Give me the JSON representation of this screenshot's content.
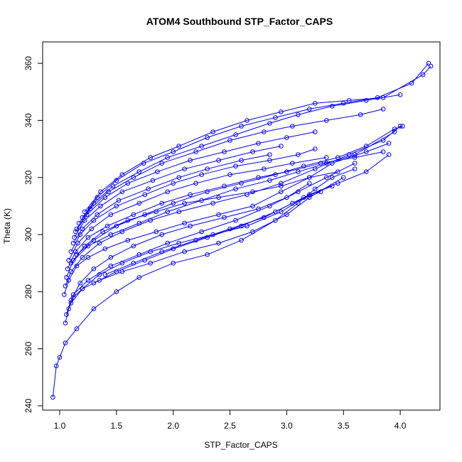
{
  "chart_data": {
    "type": "line",
    "title": "ATOM4 Southbound STP_Factor_CAPS",
    "xlabel": "STP_Factor_CAPS",
    "ylabel": "Theta (K)",
    "xlim": [
      0.85,
      4.35
    ],
    "ylim": [
      238.5,
      367.5
    ],
    "x_ticks": [
      1.0,
      1.5,
      2.0,
      2.5,
      3.0,
      3.5,
      4.0
    ],
    "x_tick_labels": [
      "1.0",
      "1.5",
      "2.0",
      "2.5",
      "3.0",
      "3.5",
      "4.0"
    ],
    "y_ticks": [
      240,
      260,
      280,
      300,
      320,
      340,
      360
    ],
    "y_tick_labels": [
      "240",
      "260",
      "280",
      "300",
      "320",
      "340",
      "360"
    ],
    "grid": false,
    "marker": "open-circle",
    "color": "#0000ff",
    "series": [
      {
        "points": [
          [
            0.94,
            243
          ],
          [
            0.97,
            254
          ],
          [
            1.0,
            257
          ],
          [
            1.05,
            262
          ],
          [
            1.15,
            267
          ],
          [
            1.3,
            274
          ],
          [
            1.5,
            280
          ],
          [
            1.7,
            285
          ],
          [
            2.0,
            290
          ],
          [
            2.3,
            293
          ],
          [
            2.6,
            298
          ],
          [
            2.9,
            305
          ],
          [
            3.1,
            311
          ],
          [
            3.25,
            316
          ],
          [
            3.4,
            320
          ],
          [
            3.6,
            323
          ]
        ]
      },
      {
        "points": [
          [
            1.05,
            269
          ],
          [
            1.08,
            274
          ],
          [
            1.12,
            278
          ],
          [
            1.2,
            281
          ],
          [
            1.35,
            284
          ],
          [
            1.55,
            287
          ],
          [
            1.8,
            290
          ],
          [
            2.1,
            294
          ],
          [
            2.4,
            297
          ],
          [
            2.7,
            301
          ],
          [
            3.0,
            307
          ],
          [
            3.2,
            313
          ],
          [
            3.5,
            320
          ]
        ]
      },
      {
        "points": [
          [
            1.04,
            279
          ],
          [
            1.08,
            284
          ],
          [
            1.15,
            289
          ],
          [
            1.25,
            292
          ],
          [
            1.4,
            295
          ],
          [
            1.6,
            298
          ],
          [
            1.85,
            301
          ],
          [
            2.1,
            304
          ],
          [
            2.4,
            307
          ],
          [
            2.7,
            310
          ],
          [
            2.95,
            315
          ],
          [
            3.2,
            320
          ],
          [
            3.4,
            325
          ],
          [
            3.7,
            329
          ],
          [
            3.9,
            332
          ]
        ]
      },
      {
        "points": [
          [
            1.05,
            282
          ],
          [
            1.1,
            287
          ],
          [
            1.2,
            292
          ],
          [
            1.35,
            297
          ],
          [
            1.55,
            301
          ],
          [
            1.8,
            305
          ],
          [
            2.05,
            308
          ],
          [
            2.35,
            311
          ],
          [
            2.65,
            314
          ],
          [
            2.95,
            318
          ],
          [
            3.25,
            323
          ],
          [
            3.55,
            328
          ],
          [
            3.85,
            333
          ],
          [
            4.0,
            338
          ]
        ]
      },
      {
        "points": [
          [
            1.06,
            285
          ],
          [
            1.12,
            291
          ],
          [
            1.22,
            296
          ],
          [
            1.38,
            301
          ],
          [
            1.6,
            305
          ],
          [
            1.85,
            308
          ],
          [
            2.1,
            311
          ],
          [
            2.4,
            313
          ],
          [
            2.7,
            315
          ],
          [
            2.95,
            317
          ],
          [
            3.2,
            320
          ],
          [
            3.45,
            322
          ]
        ]
      },
      {
        "points": [
          [
            1.07,
            288
          ],
          [
            1.14,
            294
          ],
          [
            1.25,
            299
          ],
          [
            1.42,
            303
          ],
          [
            1.65,
            307
          ],
          [
            1.9,
            311
          ],
          [
            2.15,
            314
          ],
          [
            2.45,
            317
          ],
          [
            2.75,
            320
          ],
          [
            3.0,
            322
          ],
          [
            3.3,
            325
          ],
          [
            3.6,
            327
          ],
          [
            3.85,
            329
          ]
        ]
      },
      {
        "points": [
          [
            1.08,
            291
          ],
          [
            1.16,
            297
          ],
          [
            1.28,
            302
          ],
          [
            1.45,
            307
          ],
          [
            1.7,
            311
          ],
          [
            1.95,
            315
          ],
          [
            2.2,
            318
          ],
          [
            2.5,
            321
          ],
          [
            2.8,
            323
          ],
          [
            3.05,
            325
          ],
          [
            3.35,
            327
          ]
        ]
      },
      {
        "points": [
          [
            1.1,
            294
          ],
          [
            1.18,
            300
          ],
          [
            1.3,
            305
          ],
          [
            1.5,
            310
          ],
          [
            1.75,
            314
          ],
          [
            2.0,
            318
          ],
          [
            2.25,
            321
          ],
          [
            2.55,
            324
          ],
          [
            2.85,
            326
          ],
          [
            3.1,
            328
          ],
          [
            3.25,
            330
          ]
        ]
      },
      {
        "points": [
          [
            1.12,
            297
          ],
          [
            1.2,
            302
          ],
          [
            1.33,
            307
          ],
          [
            1.52,
            312
          ],
          [
            1.78,
            316
          ],
          [
            2.05,
            320
          ],
          [
            2.3,
            323
          ],
          [
            2.6,
            326
          ],
          [
            2.85,
            328
          ]
        ]
      },
      {
        "points": [
          [
            1.13,
            299
          ],
          [
            1.22,
            305
          ],
          [
            1.36,
            310
          ],
          [
            1.55,
            315
          ],
          [
            1.82,
            319
          ],
          [
            2.1,
            323
          ],
          [
            2.4,
            326
          ],
          [
            2.7,
            329
          ],
          [
            2.95,
            331
          ]
        ]
      },
      {
        "points": [
          [
            1.14,
            301
          ],
          [
            1.24,
            307
          ],
          [
            1.4,
            313
          ],
          [
            1.6,
            318
          ],
          [
            1.86,
            322
          ],
          [
            2.15,
            326
          ],
          [
            2.45,
            329
          ],
          [
            2.75,
            332
          ],
          [
            3.0,
            334
          ],
          [
            3.25,
            336
          ]
        ]
      },
      {
        "points": [
          [
            1.15,
            302
          ],
          [
            1.27,
            309
          ],
          [
            1.43,
            315
          ],
          [
            1.65,
            320
          ],
          [
            1.9,
            325
          ],
          [
            2.2,
            329
          ],
          [
            2.5,
            333
          ],
          [
            2.8,
            336
          ],
          [
            3.05,
            338
          ],
          [
            3.35,
            340
          ],
          [
            3.65,
            342
          ],
          [
            3.85,
            344
          ]
        ]
      },
      {
        "points": [
          [
            1.17,
            304
          ],
          [
            1.3,
            311
          ],
          [
            1.47,
            317
          ],
          [
            1.7,
            322
          ],
          [
            1.95,
            327
          ],
          [
            2.25,
            331
          ],
          [
            2.55,
            335
          ],
          [
            2.85,
            339
          ],
          [
            3.1,
            342
          ],
          [
            3.4,
            345
          ],
          [
            3.7,
            347
          ],
          [
            4.0,
            349
          ]
        ]
      },
      {
        "points": [
          [
            1.2,
            306
          ],
          [
            1.33,
            313
          ],
          [
            1.5,
            319
          ],
          [
            1.74,
            325
          ],
          [
            2.0,
            329
          ],
          [
            2.3,
            334
          ],
          [
            2.6,
            338
          ],
          [
            2.9,
            341
          ],
          [
            3.2,
            344
          ],
          [
            3.5,
            346
          ],
          [
            3.8,
            348
          ],
          [
            4.1,
            353
          ],
          [
            4.25,
            360
          ]
        ]
      },
      {
        "points": [
          [
            1.22,
            308
          ],
          [
            1.36,
            315
          ],
          [
            1.55,
            321
          ],
          [
            1.8,
            327
          ],
          [
            2.05,
            331
          ],
          [
            2.35,
            336
          ],
          [
            2.65,
            340
          ],
          [
            2.95,
            343
          ],
          [
            3.25,
            346
          ],
          [
            3.55,
            347
          ],
          [
            3.85,
            348
          ],
          [
            4.2,
            356
          ],
          [
            4.27,
            359
          ]
        ]
      },
      {
        "points": [
          [
            1.1,
            276
          ],
          [
            1.2,
            281
          ],
          [
            1.35,
            286
          ],
          [
            1.55,
            290
          ],
          [
            1.8,
            294
          ],
          [
            2.05,
            297
          ],
          [
            2.35,
            300
          ],
          [
            2.65,
            303
          ],
          [
            2.95,
            308
          ],
          [
            3.2,
            314
          ],
          [
            3.45,
            318
          ],
          [
            3.7,
            322
          ],
          [
            3.9,
            328
          ]
        ]
      },
      {
        "points": [
          [
            1.12,
            279
          ],
          [
            1.25,
            284
          ],
          [
            1.45,
            289
          ],
          [
            1.7,
            293
          ],
          [
            1.95,
            297
          ],
          [
            2.25,
            301
          ],
          [
            2.55,
            305
          ],
          [
            2.85,
            310
          ],
          [
            3.1,
            315
          ],
          [
            3.35,
            320
          ],
          [
            3.6,
            325
          ]
        ]
      },
      {
        "points": [
          [
            1.3,
            283
          ],
          [
            1.5,
            287
          ],
          [
            1.75,
            291
          ],
          [
            2.0,
            295
          ],
          [
            2.3,
            299
          ],
          [
            2.6,
            303
          ],
          [
            2.9,
            308
          ],
          [
            3.15,
            313
          ],
          [
            3.4,
            317
          ]
        ]
      },
      {
        "points": [
          [
            1.4,
            286
          ],
          [
            1.65,
            290
          ],
          [
            1.9,
            294
          ],
          [
            2.2,
            298
          ],
          [
            2.5,
            302
          ],
          [
            2.8,
            306
          ],
          [
            3.05,
            311
          ],
          [
            3.3,
            315
          ]
        ]
      },
      {
        "points": [
          [
            1.1,
            290
          ],
          [
            1.25,
            296
          ],
          [
            1.45,
            300
          ],
          [
            1.7,
            304
          ],
          [
            1.95,
            308
          ],
          [
            2.25,
            312
          ],
          [
            2.55,
            316
          ],
          [
            2.85,
            319
          ],
          [
            3.1,
            322
          ],
          [
            3.35,
            325
          ],
          [
            3.6,
            328
          ],
          [
            3.95,
            336
          ]
        ]
      },
      {
        "points": [
          [
            1.15,
            293
          ],
          [
            1.3,
            298
          ],
          [
            1.5,
            303
          ],
          [
            1.75,
            307
          ],
          [
            2.0,
            311
          ],
          [
            2.3,
            315
          ],
          [
            2.6,
            318
          ],
          [
            2.9,
            321
          ],
          [
            3.15,
            324
          ],
          [
            3.45,
            327
          ],
          [
            3.7,
            331
          ],
          [
            3.95,
            337
          ],
          [
            4.02,
            338
          ]
        ]
      },
      {
        "points": [
          [
            1.06,
            272
          ],
          [
            1.1,
            277
          ],
          [
            1.18,
            283
          ],
          [
            1.3,
            288
          ],
          [
            1.45,
            292
          ],
          [
            1.65,
            296
          ],
          [
            1.9,
            300
          ],
          [
            2.15,
            303
          ],
          [
            2.45,
            306
          ],
          [
            2.75,
            309
          ],
          [
            3.0,
            313
          ],
          [
            3.2,
            318
          ]
        ]
      }
    ]
  }
}
